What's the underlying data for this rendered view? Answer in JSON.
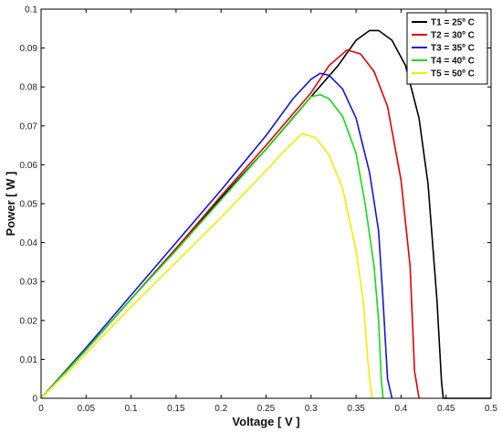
{
  "chart_data": {
    "type": "line",
    "title": "",
    "xlabel": "Voltage [ V ]",
    "ylabel": "Power [ W ]",
    "xlim": [
      0,
      0.5
    ],
    "ylim": [
      0,
      0.1
    ],
    "xticks": [
      "0",
      "0.05",
      "0.1",
      "0.15",
      "0.2",
      "0.25",
      "0.3",
      "0.35",
      "0.4",
      "0.45",
      "0.5"
    ],
    "yticks": [
      "0",
      "0.01",
      "0.02",
      "0.03",
      "0.04",
      "0.05",
      "0.06",
      "0.07",
      "0.08",
      "0.09",
      "0.1"
    ],
    "grid": false,
    "legend_position": "top-right",
    "series": [
      {
        "name": "T1 = 25º C",
        "color": "#000000",
        "x": [
          0,
          0.05,
          0.1,
          0.15,
          0.2,
          0.25,
          0.3,
          0.33,
          0.35,
          0.365,
          0.375,
          0.39,
          0.405,
          0.42,
          0.43,
          0.44,
          0.445,
          0.447,
          0.5
        ],
        "y": [
          0,
          0.0125,
          0.0255,
          0.0385,
          0.0515,
          0.064,
          0.0775,
          0.0855,
          0.092,
          0.0945,
          0.0945,
          0.092,
          0.0855,
          0.072,
          0.055,
          0.025,
          0.004,
          0,
          0
        ]
      },
      {
        "name": "T2 = 30º C",
        "color": "#e60000",
        "x": [
          0,
          0.05,
          0.1,
          0.15,
          0.2,
          0.25,
          0.3,
          0.32,
          0.34,
          0.355,
          0.37,
          0.385,
          0.4,
          0.41,
          0.415,
          0.42
        ],
        "y": [
          0,
          0.0125,
          0.0255,
          0.0385,
          0.052,
          0.065,
          0.0785,
          0.0855,
          0.0895,
          0.0885,
          0.084,
          0.075,
          0.056,
          0.034,
          0.007,
          0
        ]
      },
      {
        "name": "T3 = 35º C",
        "color": "#1414e6",
        "x": [
          0,
          0.05,
          0.1,
          0.15,
          0.2,
          0.25,
          0.28,
          0.3,
          0.31,
          0.32,
          0.335,
          0.35,
          0.365,
          0.375,
          0.38,
          0.385,
          0.39
        ],
        "y": [
          0,
          0.013,
          0.0265,
          0.04,
          0.0535,
          0.0675,
          0.077,
          0.082,
          0.0835,
          0.083,
          0.0795,
          0.072,
          0.058,
          0.043,
          0.025,
          0.005,
          0
        ]
      },
      {
        "name": "T4 = 40º C",
        "color": "#14dc14",
        "x": [
          0,
          0.05,
          0.1,
          0.15,
          0.2,
          0.25,
          0.28,
          0.3,
          0.31,
          0.32,
          0.335,
          0.35,
          0.36,
          0.37,
          0.375,
          0.378,
          0.38
        ],
        "y": [
          0,
          0.0125,
          0.0255,
          0.038,
          0.051,
          0.064,
          0.072,
          0.0775,
          0.078,
          0.077,
          0.0725,
          0.063,
          0.05,
          0.034,
          0.02,
          0.005,
          0
        ]
      },
      {
        "name": "T5 = 50º C",
        "color": "#f0f000",
        "x": [
          0,
          0.05,
          0.1,
          0.15,
          0.2,
          0.25,
          0.27,
          0.29,
          0.305,
          0.32,
          0.335,
          0.35,
          0.358,
          0.363,
          0.366,
          0.368
        ],
        "y": [
          0,
          0.0115,
          0.0235,
          0.035,
          0.0465,
          0.0585,
          0.0635,
          0.068,
          0.067,
          0.0625,
          0.054,
          0.038,
          0.025,
          0.01,
          0.003,
          0
        ]
      }
    ]
  }
}
